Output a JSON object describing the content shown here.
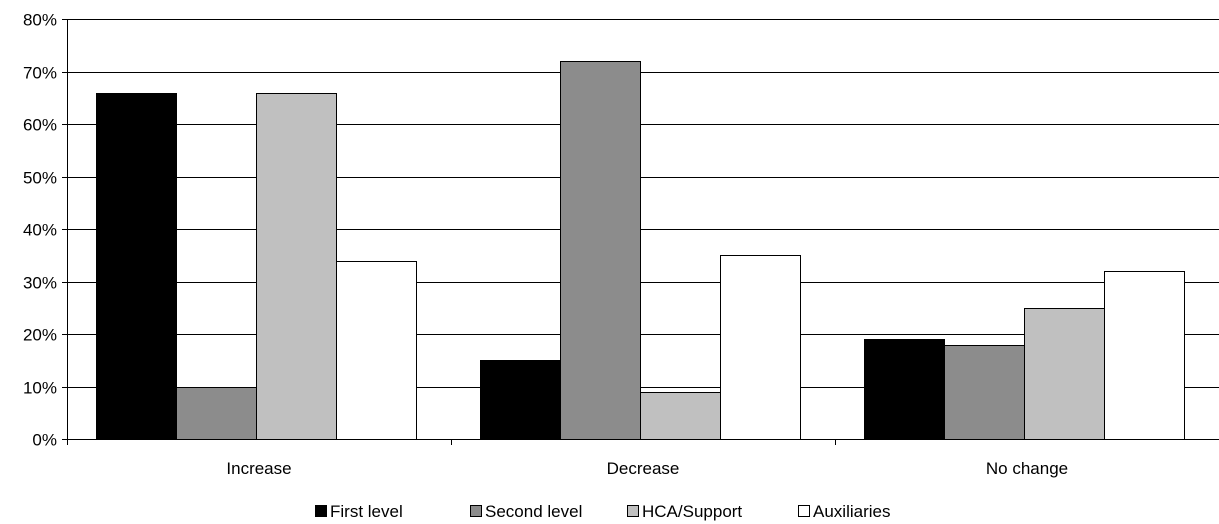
{
  "chart_data": {
    "type": "bar",
    "categories": [
      "Increase",
      "Decrease",
      "No change"
    ],
    "series": [
      {
        "name": "First level",
        "color": "#000000",
        "values": [
          66,
          15,
          19
        ]
      },
      {
        "name": "Second level",
        "color": "#8c8c8c",
        "values": [
          10,
          72,
          18
        ]
      },
      {
        "name": "HCA/Support",
        "color": "#c0c0c0",
        "values": [
          66,
          9,
          25
        ]
      },
      {
        "name": "Auxiliaries",
        "color": "#ffffff",
        "values": [
          34,
          35,
          32
        ]
      }
    ],
    "y_ticks": [
      "0%",
      "10%",
      "20%",
      "30%",
      "40%",
      "50%",
      "60%",
      "70%",
      "80%"
    ],
    "ylim": [
      0,
      80
    ],
    "grid": true,
    "legend_position": "bottom",
    "title": "",
    "xlabel": "",
    "ylabel": ""
  }
}
